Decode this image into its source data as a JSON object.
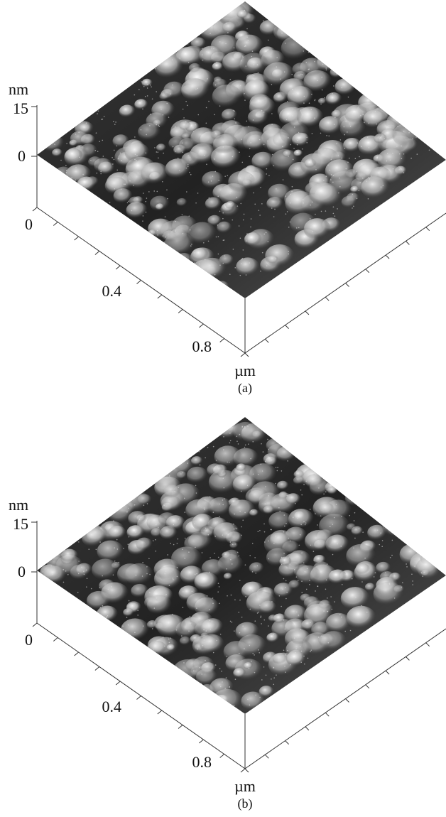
{
  "panels": [
    {
      "z_axis": {
        "unit": "nm",
        "ticks": [
          "15",
          "0"
        ]
      },
      "x_axis": {
        "ticks": [
          "0",
          "0.4",
          "0.8"
        ],
        "unit": "µm"
      },
      "caption": "(a)"
    },
    {
      "z_axis": {
        "unit": "nm",
        "ticks": [
          "15",
          "0"
        ]
      },
      "x_axis": {
        "ticks": [
          "0",
          "0.4",
          "0.8"
        ],
        "unit": "µm"
      },
      "caption": "(b)"
    }
  ]
}
